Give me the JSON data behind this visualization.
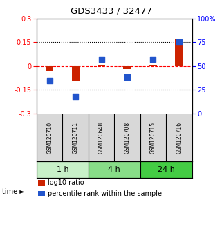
{
  "title": "GDS3433 / 32477",
  "samples": [
    "GSM120710",
    "GSM120711",
    "GSM120648",
    "GSM120708",
    "GSM120715",
    "GSM120716"
  ],
  "log10_ratio": [
    -0.03,
    -0.09,
    0.01,
    -0.02,
    0.01,
    0.17
  ],
  "percentile_rank": [
    35,
    18,
    57,
    38,
    57,
    75
  ],
  "time_groups": [
    {
      "label": "1 h",
      "start": 0,
      "end": 2,
      "color": "#c8f0c8"
    },
    {
      "label": "4 h",
      "start": 2,
      "end": 4,
      "color": "#88dd88"
    },
    {
      "label": "24 h",
      "start": 4,
      "end": 6,
      "color": "#44cc44"
    }
  ],
  "ylim_left": [
    -0.3,
    0.3
  ],
  "ylim_right": [
    0,
    100
  ],
  "yticks_left": [
    -0.3,
    -0.15,
    0,
    0.15,
    0.3
  ],
  "yticks_right": [
    0,
    25,
    50,
    75,
    100
  ],
  "ytick_labels_right": [
    "0",
    "25",
    "50",
    "75",
    "100%"
  ],
  "hlines": [
    0.15,
    0,
    -0.15
  ],
  "hline_colors": [
    "black",
    "red",
    "black"
  ],
  "hline_styles": [
    ":",
    "--",
    ":"
  ],
  "bar_color": "#cc2200",
  "dot_color": "#2255cc",
  "bar_width": 0.3,
  "dot_size": 35,
  "bg_color": "#d8d8d8",
  "plot_bg": "#ffffff"
}
